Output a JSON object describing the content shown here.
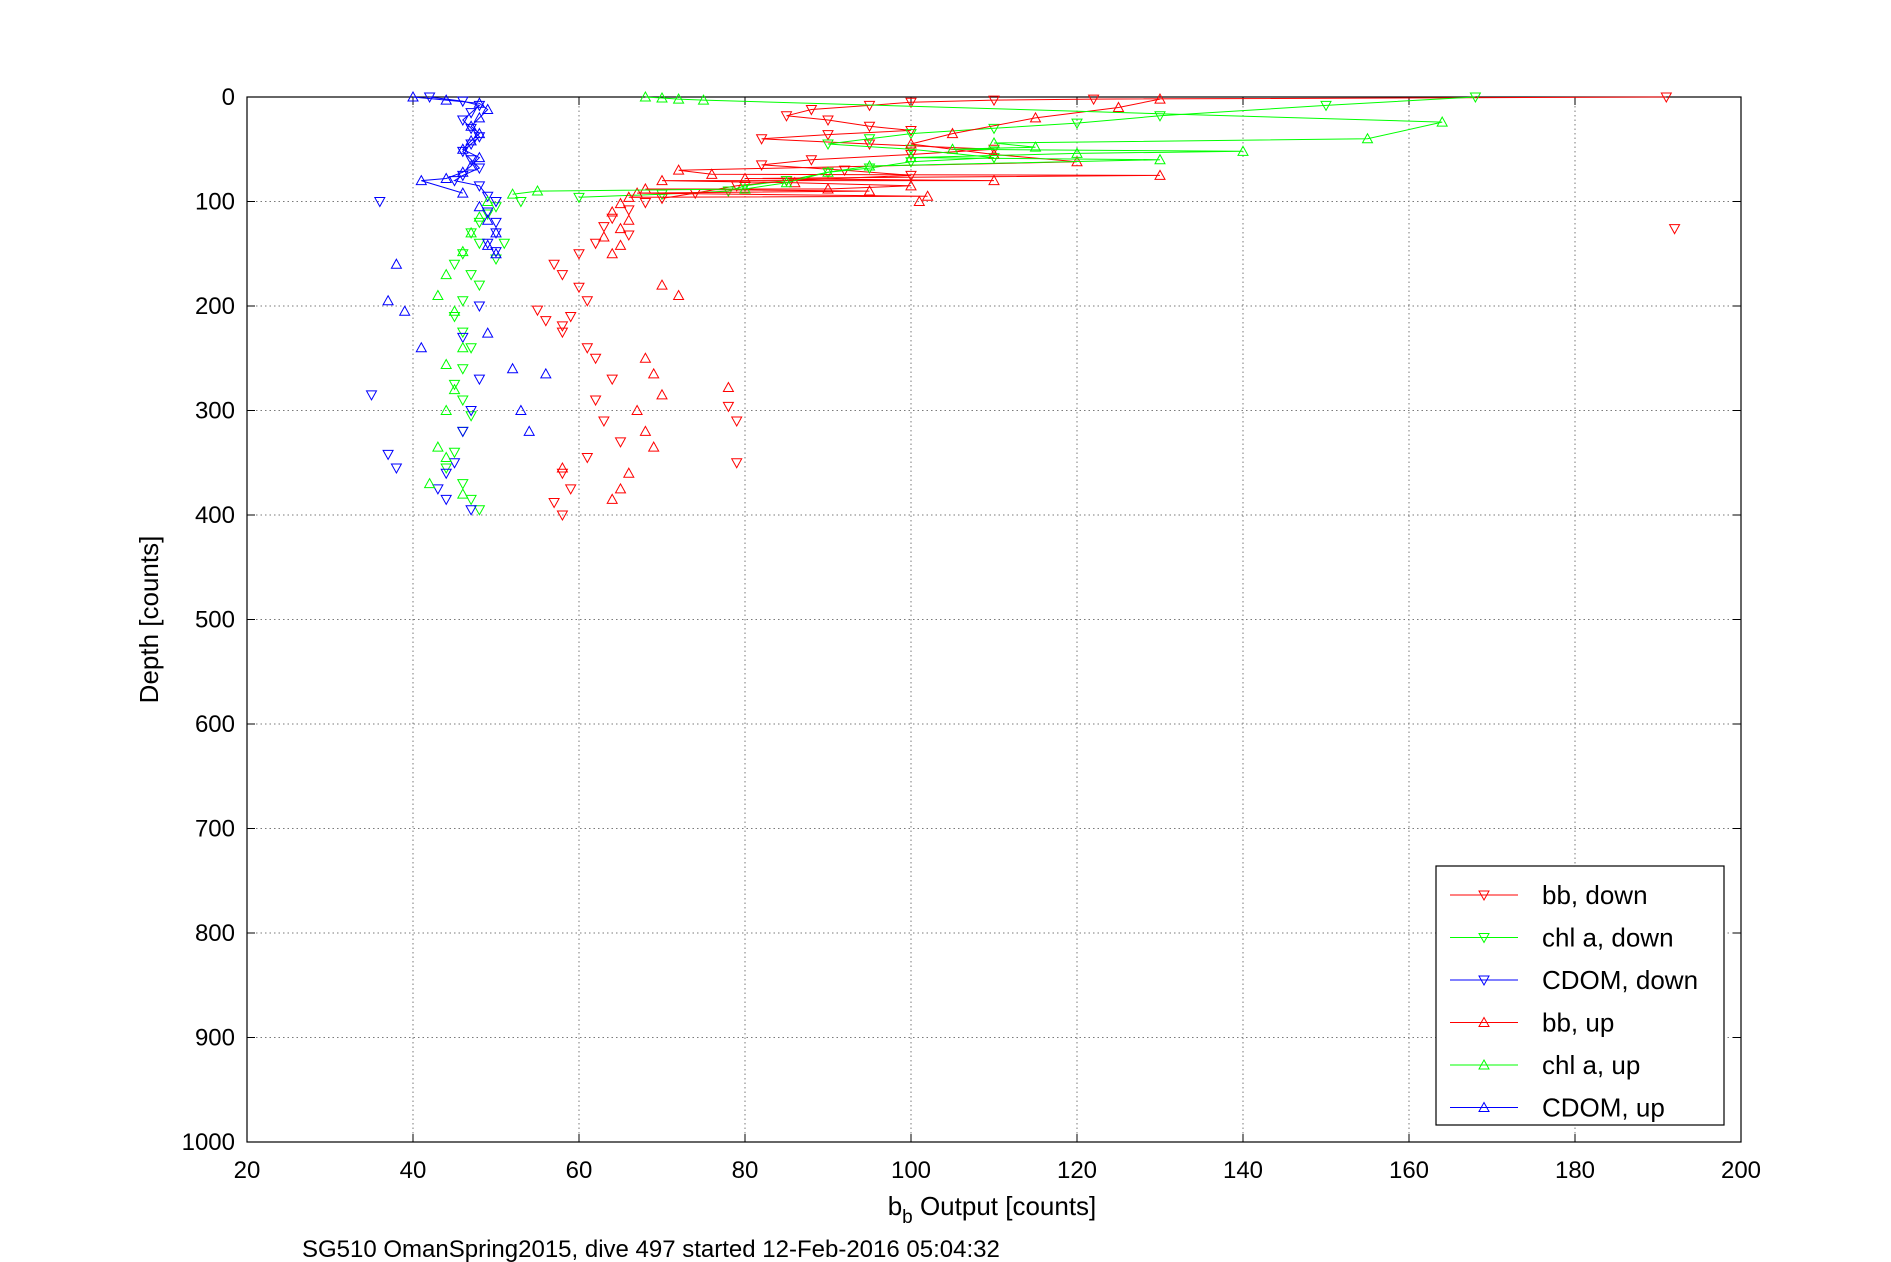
{
  "chart_data": {
    "type": "scatter",
    "title": "",
    "xlabel_main": "b",
    "xlabel_sub": "b",
    "xlabel_rest": " Output [counts]",
    "ylabel": "Depth [counts]",
    "caption": "SG510 OmanSpring2015, dive 497 started 12-Feb-2016 05:04:32",
    "xlim": [
      20,
      200
    ],
    "ylim": [
      0,
      1000
    ],
    "y_reversed": true,
    "grid": true,
    "legend_position": "bottom-right",
    "xticks": [
      "20",
      "40",
      "60",
      "80",
      "100",
      "120",
      "140",
      "160",
      "180",
      "200"
    ],
    "yticks": [
      "0",
      "100",
      "200",
      "300",
      "400",
      "500",
      "600",
      "700",
      "800",
      "900",
      "1000"
    ],
    "series": [
      {
        "name": "bb, down",
        "color": "#ff0000",
        "marker": "triangle-down",
        "points": [
          [
            191,
            0
          ],
          [
            192,
            126
          ],
          [
            122,
            2
          ],
          [
            110,
            3
          ],
          [
            100,
            5
          ],
          [
            95,
            8
          ],
          [
            88,
            12
          ],
          [
            85,
            18
          ],
          [
            90,
            22
          ],
          [
            95,
            28
          ],
          [
            100,
            32
          ],
          [
            90,
            36
          ],
          [
            82,
            40
          ],
          [
            95,
            45
          ],
          [
            110,
            50
          ],
          [
            100,
            55
          ],
          [
            88,
            60
          ],
          [
            82,
            65
          ],
          [
            92,
            70
          ],
          [
            100,
            75
          ],
          [
            85,
            80
          ],
          [
            79,
            85
          ],
          [
            74,
            92
          ],
          [
            70,
            97
          ],
          [
            68,
            101
          ],
          [
            66,
            108
          ],
          [
            64,
            116
          ],
          [
            63,
            124
          ],
          [
            66,
            132
          ],
          [
            62,
            140
          ],
          [
            60,
            150
          ],
          [
            57,
            160
          ],
          [
            58,
            170
          ],
          [
            60,
            182
          ],
          [
            61,
            195
          ],
          [
            59,
            210
          ],
          [
            58,
            225
          ],
          [
            61,
            240
          ],
          [
            62,
            250
          ],
          [
            64,
            270
          ],
          [
            62,
            290
          ],
          [
            63,
            310
          ],
          [
            65,
            330
          ],
          [
            61,
            345
          ],
          [
            58,
            360
          ],
          [
            59,
            375
          ],
          [
            57,
            388
          ],
          [
            58,
            400
          ],
          [
            78,
            296
          ],
          [
            79,
            310
          ],
          [
            79,
            350
          ],
          [
            56,
            214
          ],
          [
            58,
            219
          ],
          [
            55,
            204
          ]
        ]
      },
      {
        "name": "chl a, down",
        "color": "#00ff00",
        "marker": "triangle-down",
        "points": [
          [
            168,
            0
          ],
          [
            150,
            8
          ],
          [
            130,
            18
          ],
          [
            120,
            25
          ],
          [
            110,
            30
          ],
          [
            100,
            35
          ],
          [
            95,
            40
          ],
          [
            90,
            45
          ],
          [
            100,
            50
          ],
          [
            110,
            58
          ],
          [
            100,
            62
          ],
          [
            95,
            68
          ],
          [
            90,
            72
          ],
          [
            85,
            80
          ],
          [
            80,
            85
          ],
          [
            78,
            90
          ],
          [
            70,
            93
          ],
          [
            60,
            96
          ],
          [
            53,
            100
          ],
          [
            50,
            105
          ],
          [
            49,
            112
          ],
          [
            48,
            120
          ],
          [
            47,
            130
          ],
          [
            48,
            140
          ],
          [
            46,
            150
          ],
          [
            45,
            160
          ],
          [
            47,
            170
          ],
          [
            48,
            180
          ],
          [
            46,
            195
          ],
          [
            45,
            210
          ],
          [
            46,
            225
          ],
          [
            47,
            240
          ],
          [
            46,
            260
          ],
          [
            45,
            275
          ],
          [
            46,
            290
          ],
          [
            47,
            305
          ],
          [
            46,
            320
          ],
          [
            45,
            340
          ],
          [
            44,
            355
          ],
          [
            46,
            370
          ],
          [
            47,
            385
          ],
          [
            48,
            395
          ],
          [
            50,
            155
          ],
          [
            51,
            140
          ]
        ]
      },
      {
        "name": "CDOM, down",
        "color": "#0000ff",
        "marker": "triangle-down",
        "points": [
          [
            42,
            0
          ],
          [
            46,
            4
          ],
          [
            48,
            8
          ],
          [
            47,
            15
          ],
          [
            46,
            22
          ],
          [
            47,
            30
          ],
          [
            48,
            38
          ],
          [
            47,
            45
          ],
          [
            46,
            52
          ],
          [
            47,
            60
          ],
          [
            48,
            68
          ],
          [
            46,
            75
          ],
          [
            45,
            80
          ],
          [
            48,
            85
          ],
          [
            49,
            95
          ],
          [
            50,
            100
          ],
          [
            49,
            110
          ],
          [
            50,
            120
          ],
          [
            50,
            130
          ],
          [
            49,
            140
          ],
          [
            50,
            148
          ],
          [
            36,
            100
          ],
          [
            48,
            200
          ],
          [
            46,
            230
          ],
          [
            48,
            270
          ],
          [
            47,
            300
          ],
          [
            46,
            320
          ],
          [
            45,
            350
          ],
          [
            44,
            360
          ],
          [
            43,
            375
          ],
          [
            44,
            385
          ],
          [
            47,
            395
          ],
          [
            38,
            355
          ],
          [
            37,
            342
          ],
          [
            35,
            285
          ]
        ]
      },
      {
        "name": "bb, up",
        "color": "#ff0000",
        "marker": "triangle-up",
        "points": [
          [
            130,
            2
          ],
          [
            125,
            10
          ],
          [
            115,
            20
          ],
          [
            105,
            35
          ],
          [
            100,
            45
          ],
          [
            110,
            55
          ],
          [
            120,
            62
          ],
          [
            130,
            75
          ],
          [
            110,
            80
          ],
          [
            100,
            85
          ],
          [
            102,
            95
          ],
          [
            101,
            100
          ],
          [
            95,
            90
          ],
          [
            90,
            88
          ],
          [
            86,
            82
          ],
          [
            80,
            78
          ],
          [
            76,
            74
          ],
          [
            72,
            70
          ],
          [
            70,
            80
          ],
          [
            68,
            88
          ],
          [
            67,
            92
          ],
          [
            66,
            96
          ],
          [
            65,
            102
          ],
          [
            64,
            110
          ],
          [
            66,
            118
          ],
          [
            65,
            126
          ],
          [
            63,
            134
          ],
          [
            65,
            142
          ],
          [
            64,
            150
          ],
          [
            70,
            180
          ],
          [
            72,
            190
          ],
          [
            68,
            250
          ],
          [
            69,
            265
          ],
          [
            70,
            285
          ],
          [
            67,
            300
          ],
          [
            68,
            320
          ],
          [
            69,
            335
          ],
          [
            66,
            360
          ],
          [
            65,
            375
          ],
          [
            64,
            385
          ],
          [
            78,
            278
          ],
          [
            58,
            355
          ]
        ]
      },
      {
        "name": "chl a, up",
        "color": "#00ff00",
        "marker": "triangle-up",
        "points": [
          [
            164,
            24
          ],
          [
            155,
            40
          ],
          [
            140,
            52
          ],
          [
            130,
            60
          ],
          [
            120,
            54
          ],
          [
            115,
            48
          ],
          [
            110,
            44
          ],
          [
            105,
            50
          ],
          [
            100,
            58
          ],
          [
            95,
            66
          ],
          [
            90,
            72
          ],
          [
            85,
            82
          ],
          [
            80,
            88
          ],
          [
            68,
            0
          ],
          [
            70,
            1
          ],
          [
            72,
            2
          ],
          [
            75,
            3
          ],
          [
            55,
            90
          ],
          [
            52,
            93
          ],
          [
            49,
            100
          ],
          [
            48,
            115
          ],
          [
            47,
            130
          ],
          [
            46,
            148
          ],
          [
            44,
            170
          ],
          [
            43,
            190
          ],
          [
            45,
            205
          ],
          [
            46,
            240
          ],
          [
            44,
            256
          ],
          [
            45,
            280
          ],
          [
            44,
            300
          ],
          [
            43,
            335
          ],
          [
            44,
            345
          ],
          [
            42,
            370
          ],
          [
            46,
            380
          ]
        ]
      },
      {
        "name": "CDOM, up",
        "color": "#0000ff",
        "marker": "triangle-up",
        "points": [
          [
            40,
            0
          ],
          [
            44,
            3
          ],
          [
            48,
            6
          ],
          [
            49,
            12
          ],
          [
            48,
            20
          ],
          [
            47,
            28
          ],
          [
            48,
            35
          ],
          [
            47,
            42
          ],
          [
            46,
            50
          ],
          [
            48,
            58
          ],
          [
            47,
            66
          ],
          [
            46,
            72
          ],
          [
            44,
            78
          ],
          [
            41,
            80
          ],
          [
            46,
            92
          ],
          [
            48,
            105
          ],
          [
            49,
            118
          ],
          [
            50,
            130
          ],
          [
            49,
            142
          ],
          [
            50,
            150
          ],
          [
            38,
            160
          ],
          [
            37,
            195
          ],
          [
            39,
            205
          ],
          [
            41,
            240
          ],
          [
            49,
            226
          ],
          [
            53,
            300
          ],
          [
            54,
            320
          ],
          [
            56,
            265
          ],
          [
            52,
            260
          ]
        ]
      }
    ]
  }
}
